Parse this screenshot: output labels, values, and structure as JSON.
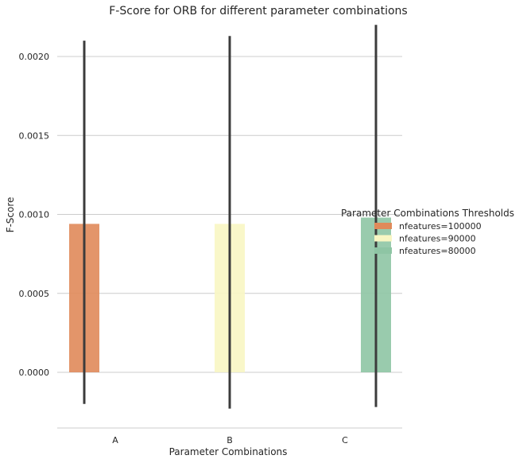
{
  "chart_data": {
    "type": "bar",
    "title": "F-Score for ORB for different parameter combinations",
    "xlabel": "Parameter Combinations",
    "ylabel": "F-Score",
    "categories": [
      "A",
      "B",
      "C"
    ],
    "series": [
      {
        "name": "nfeatures=100000",
        "color": "#e08a5a",
        "values": [
          0.00094,
          null,
          null
        ],
        "error_low": [
          -0.0002,
          null,
          null
        ],
        "error_high": [
          0.0021,
          null,
          null
        ]
      },
      {
        "name": "nfeatures=90000",
        "color": "#f8f6c3",
        "values": [
          null,
          0.00094,
          null
        ],
        "error_low": [
          null,
          -0.00023,
          null
        ],
        "error_high": [
          null,
          0.00213,
          null
        ]
      },
      {
        "name": "nfeatures=80000",
        "color": "#8ec5a4",
        "values": [
          null,
          null,
          0.00098
        ],
        "error_low": [
          null,
          null,
          -0.00022
        ],
        "error_high": [
          null,
          null,
          0.0022
        ]
      }
    ],
    "yticks": [
      "0.0000",
      "0.0005",
      "0.0010",
      "0.0015",
      "0.0020"
    ],
    "ytick_values": [
      0,
      0.0005,
      0.001,
      0.0015,
      0.002
    ],
    "ylim": [
      -0.00035,
      0.00225
    ],
    "grid": "horizontal",
    "legend": {
      "title": "Parameter Combinations Thresholds",
      "placement": "right"
    }
  }
}
